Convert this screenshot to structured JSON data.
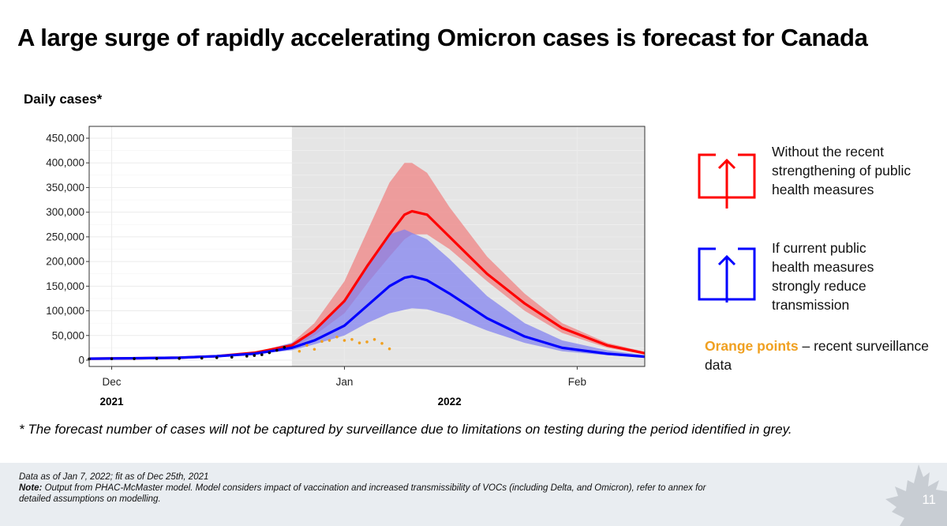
{
  "title": "A large surge of rapidly accelerating Omicron cases is forecast for Canada",
  "chart_data": {
    "type": "line",
    "ylabel": "Daily cases*",
    "y_ticks": [
      "450,000",
      "400,000",
      "350,000",
      "300,000",
      "250,000",
      "200,000",
      "150,000",
      "100,000",
      "50,000",
      "0"
    ],
    "ylim": [
      0,
      450000
    ],
    "x_ticks": [
      {
        "label": "Dec",
        "x": "2021-12-01"
      },
      {
        "label": "Jan",
        "x": "2022-01-01"
      },
      {
        "label": "Feb",
        "x": "2022-02-01"
      }
    ],
    "year_labels": [
      {
        "label": "2021",
        "x": "2021-12-01"
      },
      {
        "label": "2022",
        "x": "2022-01-15"
      }
    ],
    "xlim": [
      "2021-11-28",
      "2022-02-10"
    ],
    "grey_period": [
      "2021-12-25",
      "2022-02-10"
    ],
    "colors": {
      "red": "#FF0000",
      "blue": "#0000FF",
      "orange": "#F0A020",
      "red_band": "#F08080",
      "blue_band": "#8080F0",
      "grey": "#E5E5E5"
    },
    "series": [
      {
        "color": "red",
        "x": [
          "2021-11-28",
          "2021-12-05",
          "2021-12-10",
          "2021-12-15",
          "2021-12-20",
          "2021-12-25",
          "2021-12-28",
          "2022-01-01",
          "2022-01-04",
          "2022-01-07",
          "2022-01-09",
          "2022-01-10",
          "2022-01-12",
          "2022-01-15",
          "2022-01-20",
          "2022-01-25",
          "2022-01-30",
          "2022-02-05",
          "2022-02-10"
        ],
        "y": [
          3000,
          4000,
          5000,
          8000,
          15000,
          30000,
          60000,
          120000,
          190000,
          255000,
          295000,
          302000,
          295000,
          250000,
          175000,
          115000,
          65000,
          30000,
          14000
        ],
        "band_low": [
          3000,
          4000,
          5000,
          8000,
          14000,
          25000,
          50000,
          95000,
          155000,
          210000,
          245000,
          255000,
          255000,
          225000,
          160000,
          100000,
          55000,
          25000,
          12000
        ],
        "band_high": [
          3000,
          4000,
          5000,
          8000,
          16000,
          35000,
          75000,
          160000,
          260000,
          360000,
          400000,
          400000,
          380000,
          310000,
          210000,
          135000,
          75000,
          35000,
          17000
        ]
      },
      {
        "color": "blue",
        "x": [
          "2021-11-28",
          "2021-12-05",
          "2021-12-10",
          "2021-12-15",
          "2021-12-20",
          "2021-12-25",
          "2021-12-28",
          "2022-01-01",
          "2022-01-04",
          "2022-01-07",
          "2022-01-09",
          "2022-01-10",
          "2022-01-12",
          "2022-01-15",
          "2022-01-20",
          "2022-01-25",
          "2022-01-30",
          "2022-02-05",
          "2022-02-10"
        ],
        "y": [
          3000,
          4000,
          5000,
          8000,
          13000,
          25000,
          40000,
          70000,
          110000,
          150000,
          167000,
          170000,
          162000,
          135000,
          85000,
          48000,
          25000,
          13000,
          7000
        ],
        "band_low": [
          3000,
          4000,
          5000,
          8000,
          12000,
          20000,
          32000,
          50000,
          75000,
          95000,
          102000,
          105000,
          103000,
          90000,
          60000,
          35000,
          18000,
          10000,
          6000
        ],
        "band_high": [
          3000,
          4000,
          5000,
          8000,
          15000,
          35000,
          60000,
          120000,
          195000,
          255000,
          265000,
          258000,
          245000,
          205000,
          130000,
          75000,
          40000,
          20000,
          10000
        ]
      }
    ],
    "observed": {
      "before_grey": {
        "color": "black",
        "x": [
          "2021-11-28",
          "2021-12-01",
          "2021-12-04",
          "2021-12-07",
          "2021-12-10",
          "2021-12-13",
          "2021-12-15",
          "2021-12-17",
          "2021-12-19",
          "2021-12-20",
          "2021-12-21",
          "2021-12-22",
          "2021-12-23",
          "2021-12-24"
        ],
        "y": [
          2500,
          2800,
          3000,
          3300,
          3500,
          4000,
          5000,
          6000,
          8000,
          9500,
          11000,
          15000,
          20000,
          26000
        ]
      },
      "orange": {
        "color": "orange",
        "x": [
          "2021-12-26",
          "2021-12-27",
          "2021-12-28",
          "2021-12-29",
          "2021-12-30",
          "2021-12-31",
          "2022-01-01",
          "2022-01-02",
          "2022-01-03",
          "2022-01-04",
          "2022-01-05",
          "2022-01-06",
          "2022-01-07"
        ],
        "y": [
          18000,
          30000,
          22000,
          38000,
          40000,
          47000,
          40000,
          42000,
          35000,
          37000,
          42000,
          34000,
          23000
        ]
      }
    }
  },
  "legend": {
    "red_text": "Without the recent strengthening of public health measures",
    "blue_text": "If current public health measures strongly reduce transmission",
    "orange_label": "Orange points",
    "orange_rest": " – recent surveillance data",
    "red_icon": "arrow-up-box-icon",
    "blue_icon": "arrow-up-box-icon"
  },
  "footnote": "* The forecast number of cases will not be captured by surveillance due to limitations on testing during the period identified in grey.",
  "footer": {
    "line1": "Data as of Jan 7, 2022; fit as of Dec 25th, 2021",
    "note_label": "Note:",
    "note_text": " Output from PHAC-McMaster model. Model considers impact of vaccination and increased transmissibility of VOCs (including Delta, and Omicron), refer to annex for",
    "line3": "detailed assumptions on modelling.",
    "page_number": "11",
    "logo_icon": "maple-leaf-icon"
  }
}
